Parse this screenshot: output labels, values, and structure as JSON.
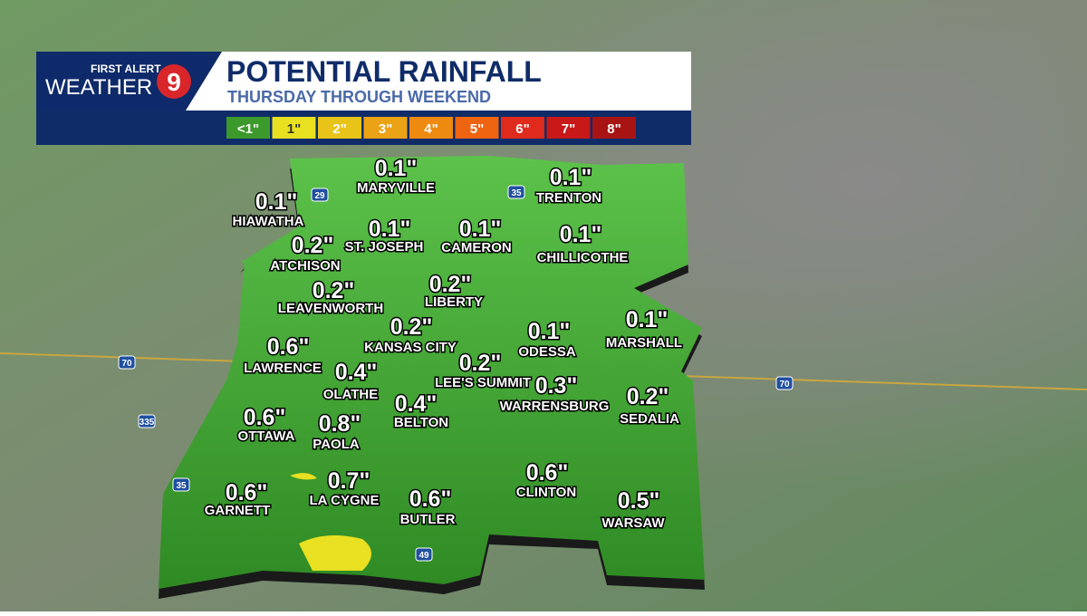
{
  "header": {
    "brand_top": "FIRST ALERT",
    "brand_bottom": "WEATHER",
    "channel": "9",
    "title": "POTENTIAL RAINFALL",
    "subtitle": "THURSDAY THROUGH WEEKEND"
  },
  "legend": [
    {
      "label": "<1\"",
      "color": "#3c9a2c"
    },
    {
      "label": "1\"",
      "color": "#e8e020"
    },
    {
      "label": "2\"",
      "color": "#e8c418"
    },
    {
      "label": "3\"",
      "color": "#eba214"
    },
    {
      "label": "4\"",
      "color": "#ee8a10"
    },
    {
      "label": "5\"",
      "color": "#ee6410"
    },
    {
      "label": "6\"",
      "color": "#e02a1c"
    },
    {
      "label": "7\"",
      "color": "#c81818"
    },
    {
      "label": "8\"",
      "color": "#a81414"
    }
  ],
  "cities": [
    {
      "amount": "0.1\"",
      "name": "MARYVILLE"
    },
    {
      "amount": "0.1\"",
      "name": "TRENTON"
    },
    {
      "amount": "0.1\"",
      "name": "HIAWATHA"
    },
    {
      "amount": "0.1\"",
      "name": "ST. JOSEPH"
    },
    {
      "amount": "0.1\"",
      "name": "CAMERON"
    },
    {
      "amount": "0.1\"",
      "name": "CHILLICOTHE"
    },
    {
      "amount": "0.2\"",
      "name": "ATCHISON"
    },
    {
      "amount": "0.2\"",
      "name": "LEAVENWORTH"
    },
    {
      "amount": "0.2\"",
      "name": "LIBERTY"
    },
    {
      "amount": "0.2\"",
      "name": "KANSAS CITY"
    },
    {
      "amount": "0.1\"",
      "name": "ODESSA"
    },
    {
      "amount": "0.1\"",
      "name": "MARSHALL"
    },
    {
      "amount": "0.6\"",
      "name": "LAWRENCE"
    },
    {
      "amount": "0.2\"",
      "name": "LEE'S SUMMIT"
    },
    {
      "amount": "0.4\"",
      "name": "OLATHE"
    },
    {
      "amount": "0.3\"",
      "name": "WARRENSBURG"
    },
    {
      "amount": "0.4\"",
      "name": "BELTON"
    },
    {
      "amount": "0.2\"",
      "name": "SEDALIA"
    },
    {
      "amount": "0.6\"",
      "name": "OTTAWA"
    },
    {
      "amount": "0.8\"",
      "name": "PAOLA"
    },
    {
      "amount": "0.7\"",
      "name": "LA CYGNE"
    },
    {
      "amount": "0.6\"",
      "name": "CLINTON"
    },
    {
      "amount": "0.6\"",
      "name": "GARNETT"
    },
    {
      "amount": "0.6\"",
      "name": "BUTLER"
    },
    {
      "amount": "0.5\"",
      "name": "WARSAW"
    }
  ],
  "highways": [
    "29",
    "35",
    "70",
    "335",
    "35",
    "49",
    "70"
  ]
}
